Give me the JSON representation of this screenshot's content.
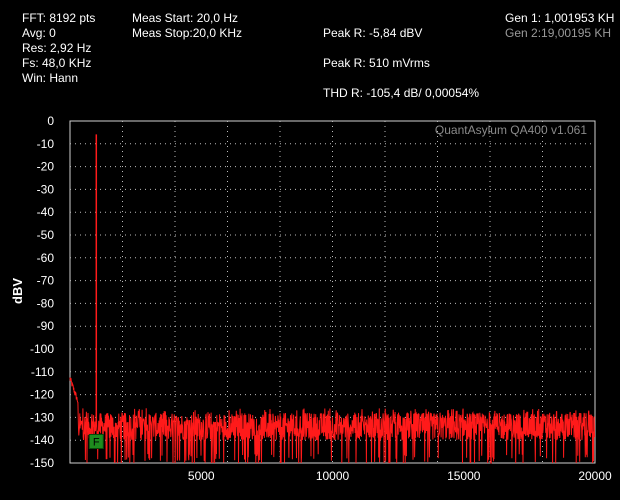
{
  "info": {
    "fft": "FFT: 8192 pts",
    "avg": "Avg: 0",
    "res": "Res: 2,92 Hz",
    "fs": "Fs: 48,0 KHz",
    "win": "Win: Hann",
    "meas_start": "Meas Start: 20,0 Hz",
    "meas_stop": "Meas Stop:20,0 KHz",
    "peak_dbv": "Peak R: -5,84 dBV",
    "peak_mv": "Peak R: 510 mVrms",
    "thd": "THD R: -105,4 dB/ 0,00054%",
    "gen1": "Gen 1: 1,001953 KH",
    "gen2": "Gen 2:19,00195 KH"
  },
  "colors": {
    "background": "#000000",
    "trace": "#ff1a1a",
    "grid": "#bbbbbb",
    "marker": "#1e8c1e"
  },
  "marker_label": "F",
  "chart_data": {
    "type": "line",
    "title": "",
    "watermark": "QuantAsylum QA400 v1.061",
    "xlabel": "",
    "ylabel": "dBV",
    "xlim": [
      0,
      20000
    ],
    "ylim": [
      -150,
      0
    ],
    "x_ticks": [
      5000,
      10000,
      15000,
      20000
    ],
    "y_ticks": [
      0,
      -10,
      -20,
      -30,
      -40,
      -50,
      -60,
      -70,
      -80,
      -90,
      -100,
      -110,
      -120,
      -130,
      -140,
      -150
    ],
    "grid": true,
    "series": [
      {
        "peaks": [
          {
            "x": 1002,
            "y": -5.84
          }
        ],
        "noise_floor_db": [
          -142,
          -126
        ],
        "low_freq_rise": [
          {
            "x": 0,
            "y": -113
          },
          {
            "x": 300,
            "y": -123
          }
        ]
      }
    ]
  }
}
